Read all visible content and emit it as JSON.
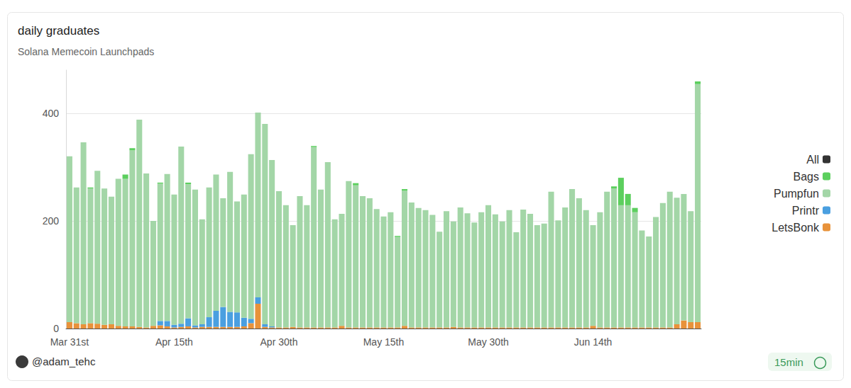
{
  "chart_data": {
    "type": "bar",
    "title": "daily graduates",
    "subtitle": "Solana Memecoin Launchpads",
    "annotations": [
      "@adam_tehc",
      "15min"
    ],
    "stacked": true,
    "grid": true,
    "legend": "right",
    "ylim": [
      0,
      480
    ],
    "yticks": [
      0,
      200,
      400
    ],
    "categories": [
      "Mar 31st",
      null,
      null,
      null,
      null,
      null,
      null,
      null,
      null,
      null,
      null,
      null,
      null,
      null,
      null,
      "Apr 15th",
      null,
      null,
      null,
      null,
      null,
      null,
      null,
      null,
      null,
      null,
      null,
      null,
      null,
      null,
      "Apr 30th",
      null,
      null,
      null,
      null,
      null,
      null,
      null,
      null,
      null,
      null,
      null,
      null,
      null,
      null,
      "May 15th",
      null,
      null,
      null,
      null,
      null,
      null,
      null,
      null,
      null,
      null,
      null,
      null,
      null,
      null,
      "May 30th",
      null,
      null,
      null,
      null,
      null,
      null,
      null,
      null,
      null,
      null,
      null,
      null,
      null,
      null,
      "Jun 14th",
      null,
      null,
      null,
      null,
      null,
      null,
      null,
      null,
      null,
      null,
      null,
      null,
      null,
      null,
      null
    ],
    "series": [
      {
        "name": "All",
        "color": "#333333",
        "values": [
          null,
          null,
          null,
          null,
          null,
          null,
          null,
          null,
          null,
          null,
          null,
          null,
          null,
          null,
          null,
          null,
          null,
          null,
          null,
          null,
          null,
          null,
          null,
          null,
          null,
          null,
          null,
          null,
          null,
          null,
          null,
          null,
          null,
          null,
          null,
          null,
          null,
          null,
          null,
          null,
          null,
          null,
          null,
          null,
          null,
          null,
          null,
          null,
          null,
          null,
          null,
          null,
          null,
          null,
          null,
          null,
          null,
          null,
          null,
          null,
          null,
          null,
          null,
          null,
          null,
          null,
          null,
          null,
          null,
          null,
          null,
          null,
          null,
          null,
          null,
          null,
          null,
          null,
          null,
          null,
          null,
          null,
          null,
          null,
          null,
          null,
          null,
          null,
          null,
          null,
          null
        ]
      },
      {
        "name": "Bags",
        "color": "#5ccf5e",
        "values": [
          0,
          0,
          0,
          2,
          0,
          0,
          0,
          0,
          8,
          4,
          0,
          0,
          0,
          2,
          0,
          0,
          0,
          3,
          0,
          0,
          0,
          0,
          0,
          0,
          0,
          0,
          0,
          0,
          0,
          0,
          0,
          0,
          0,
          0,
          0,
          2,
          0,
          0,
          0,
          0,
          0,
          4,
          0,
          0,
          0,
          0,
          0,
          2,
          3,
          0,
          0,
          0,
          0,
          0,
          0,
          0,
          0,
          0,
          0,
          0,
          0,
          0,
          0,
          0,
          0,
          0,
          0,
          0,
          0,
          0,
          0,
          0,
          0,
          0,
          0,
          0,
          0,
          0,
          4,
          51,
          21,
          8,
          0,
          0,
          0,
          0,
          0,
          0,
          0,
          0,
          5
        ]
      },
      {
        "name": "Pumpfun",
        "color": "#a3d6a7",
        "values": [
          308,
          252,
          338,
          250,
          284,
          253,
          237,
          273,
          274,
          327,
          385,
          286,
          195,
          255,
          273,
          242,
          329,
          249,
          252,
          195,
          241,
          253,
          202,
          260,
          206,
          229,
          306,
          343,
          372,
          309,
          253,
          227,
          189,
          244,
          227,
          335,
          256,
          307,
          201,
          208,
          272,
          264,
          244,
          240,
          220,
          206,
          214,
          168,
          251,
          232,
          222,
          218,
          209,
          178,
          216,
          196,
          223,
          212,
          195,
          214,
          227,
          210,
          197,
          218,
          177,
          219,
          211,
          190,
          193,
          252,
          199,
          223,
          257,
          240,
          218,
          187,
          214,
          252,
          258,
          227,
          227,
          214,
          180,
          169,
          205,
          231,
          252,
          235,
          235,
          206,
          442
        ]
      },
      {
        "name": "Printr",
        "color": "#4a9fe0",
        "values": [
          0,
          0,
          0,
          0,
          0,
          0,
          0,
          0,
          0,
          0,
          0,
          0,
          0,
          8,
          10,
          5,
          6,
          15,
          4,
          5,
          18,
          30,
          37,
          28,
          27,
          16,
          8,
          12,
          5,
          2,
          0,
          0,
          0,
          0,
          0,
          0,
          0,
          0,
          0,
          0,
          0,
          0,
          0,
          0,
          0,
          0,
          0,
          0,
          0,
          0,
          0,
          0,
          0,
          0,
          0,
          0,
          0,
          0,
          0,
          0,
          0,
          0,
          0,
          0,
          0,
          0,
          0,
          0,
          0,
          0,
          0,
          0,
          0,
          0,
          0,
          0,
          0,
          0,
          0,
          0,
          0,
          0,
          0,
          0,
          0,
          0,
          0,
          0,
          0,
          0,
          0
        ]
      },
      {
        "name": "LetsBonk",
        "color": "#e8923a",
        "values": [
          12,
          10,
          8,
          10,
          9,
          7,
          8,
          5,
          4,
          4,
          3,
          2,
          5,
          6,
          4,
          2,
          3,
          4,
          2,
          3,
          3,
          3,
          3,
          3,
          3,
          4,
          10,
          46,
          3,
          2,
          2,
          2,
          3,
          2,
          2,
          2,
          2,
          2,
          2,
          5,
          2,
          2,
          2,
          2,
          2,
          2,
          2,
          2,
          5,
          2,
          2,
          2,
          2,
          2,
          2,
          3,
          2,
          2,
          2,
          2,
          2,
          2,
          2,
          2,
          2,
          2,
          2,
          2,
          2,
          2,
          2,
          2,
          2,
          2,
          2,
          5,
          2,
          2,
          2,
          2,
          2,
          2,
          2,
          2,
          2,
          2,
          2,
          8,
          15,
          12,
          12
        ]
      }
    ]
  }
}
